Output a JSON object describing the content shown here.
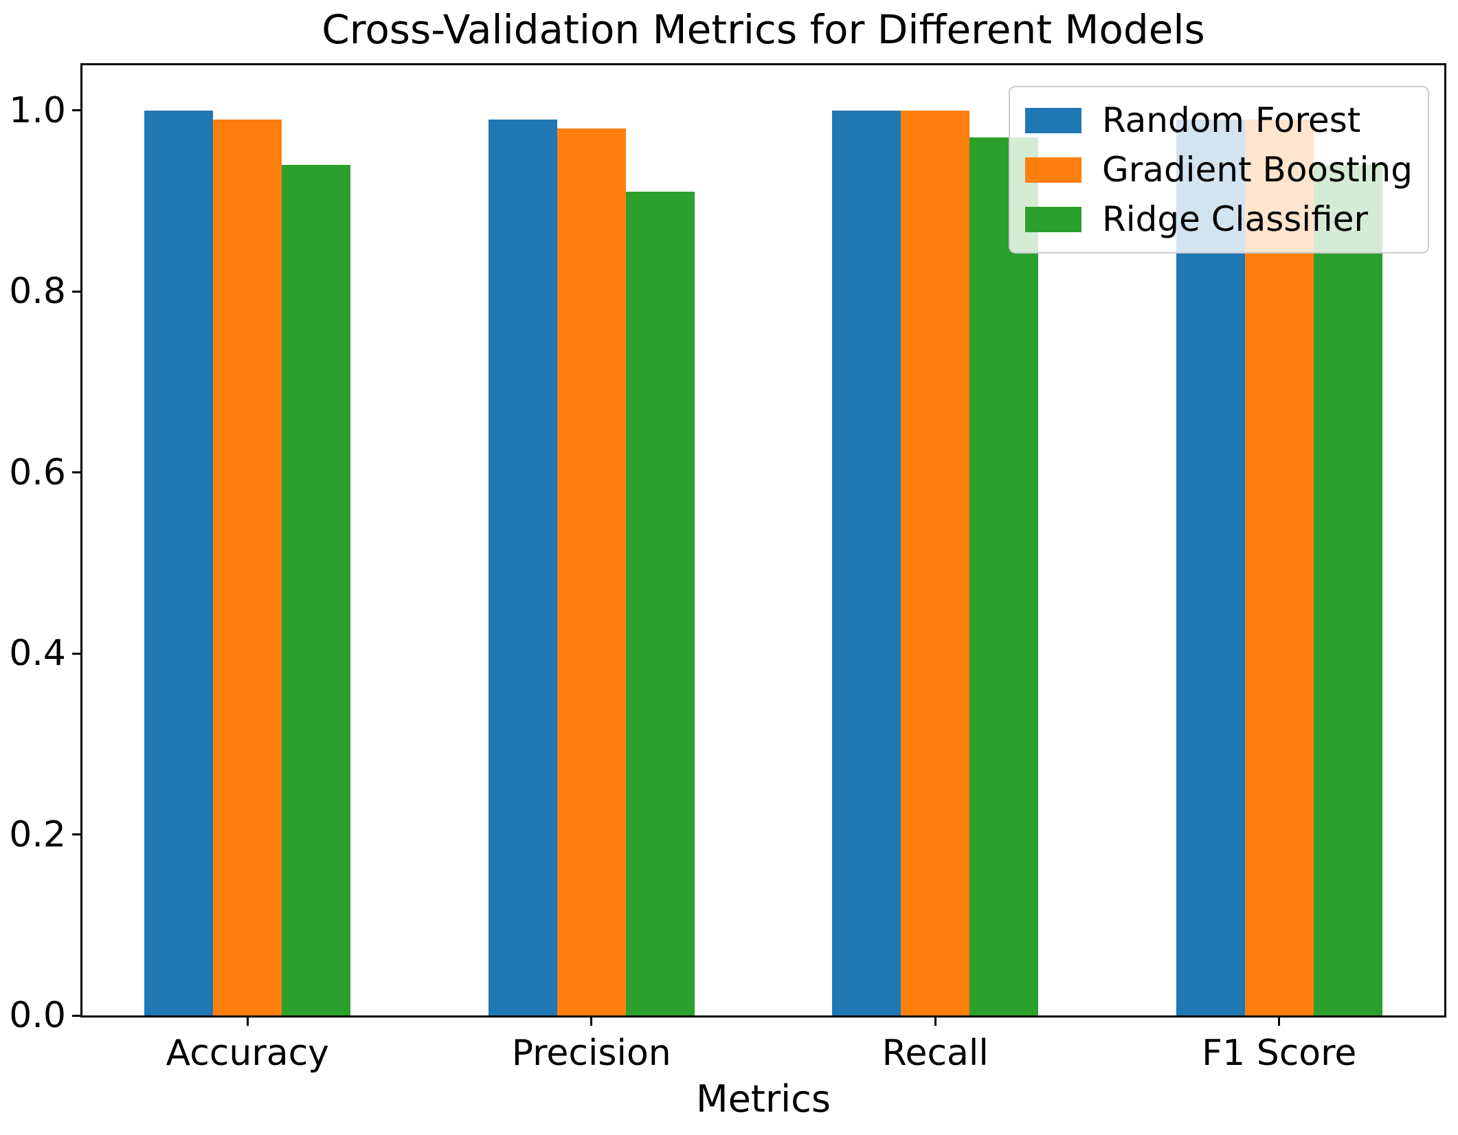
{
  "chart_data": {
    "type": "bar",
    "title": "Cross-Validation Metrics for Different Models",
    "xlabel": "Metrics",
    "ylabel": "",
    "categories": [
      "Accuracy",
      "Precision",
      "Recall",
      "F1 Score"
    ],
    "series": [
      {
        "name": "Random Forest",
        "color": "#1f77b4",
        "values": [
          1.0,
          0.99,
          1.0,
          0.99
        ]
      },
      {
        "name": "Gradient Boosting",
        "color": "#ff7f0e",
        "values": [
          0.99,
          0.98,
          1.0,
          0.99
        ]
      },
      {
        "name": "Ridge Classifier",
        "color": "#2ca02c",
        "values": [
          0.94,
          0.91,
          0.97,
          0.94
        ]
      }
    ],
    "yticks": [
      {
        "value": 0.0,
        "label": "0.0"
      },
      {
        "value": 0.2,
        "label": "0.2"
      },
      {
        "value": 0.4,
        "label": "0.4"
      },
      {
        "value": 0.6,
        "label": "0.6"
      },
      {
        "value": 0.8,
        "label": "0.8"
      },
      {
        "value": 1.0,
        "label": "1.0"
      }
    ],
    "ylim": [
      0,
      1.05
    ],
    "xlim": [
      -0.48,
      3.48
    ],
    "bar_width": 0.2,
    "grid": false,
    "legend": {
      "position": "upper right",
      "framealpha": 0.8
    }
  }
}
